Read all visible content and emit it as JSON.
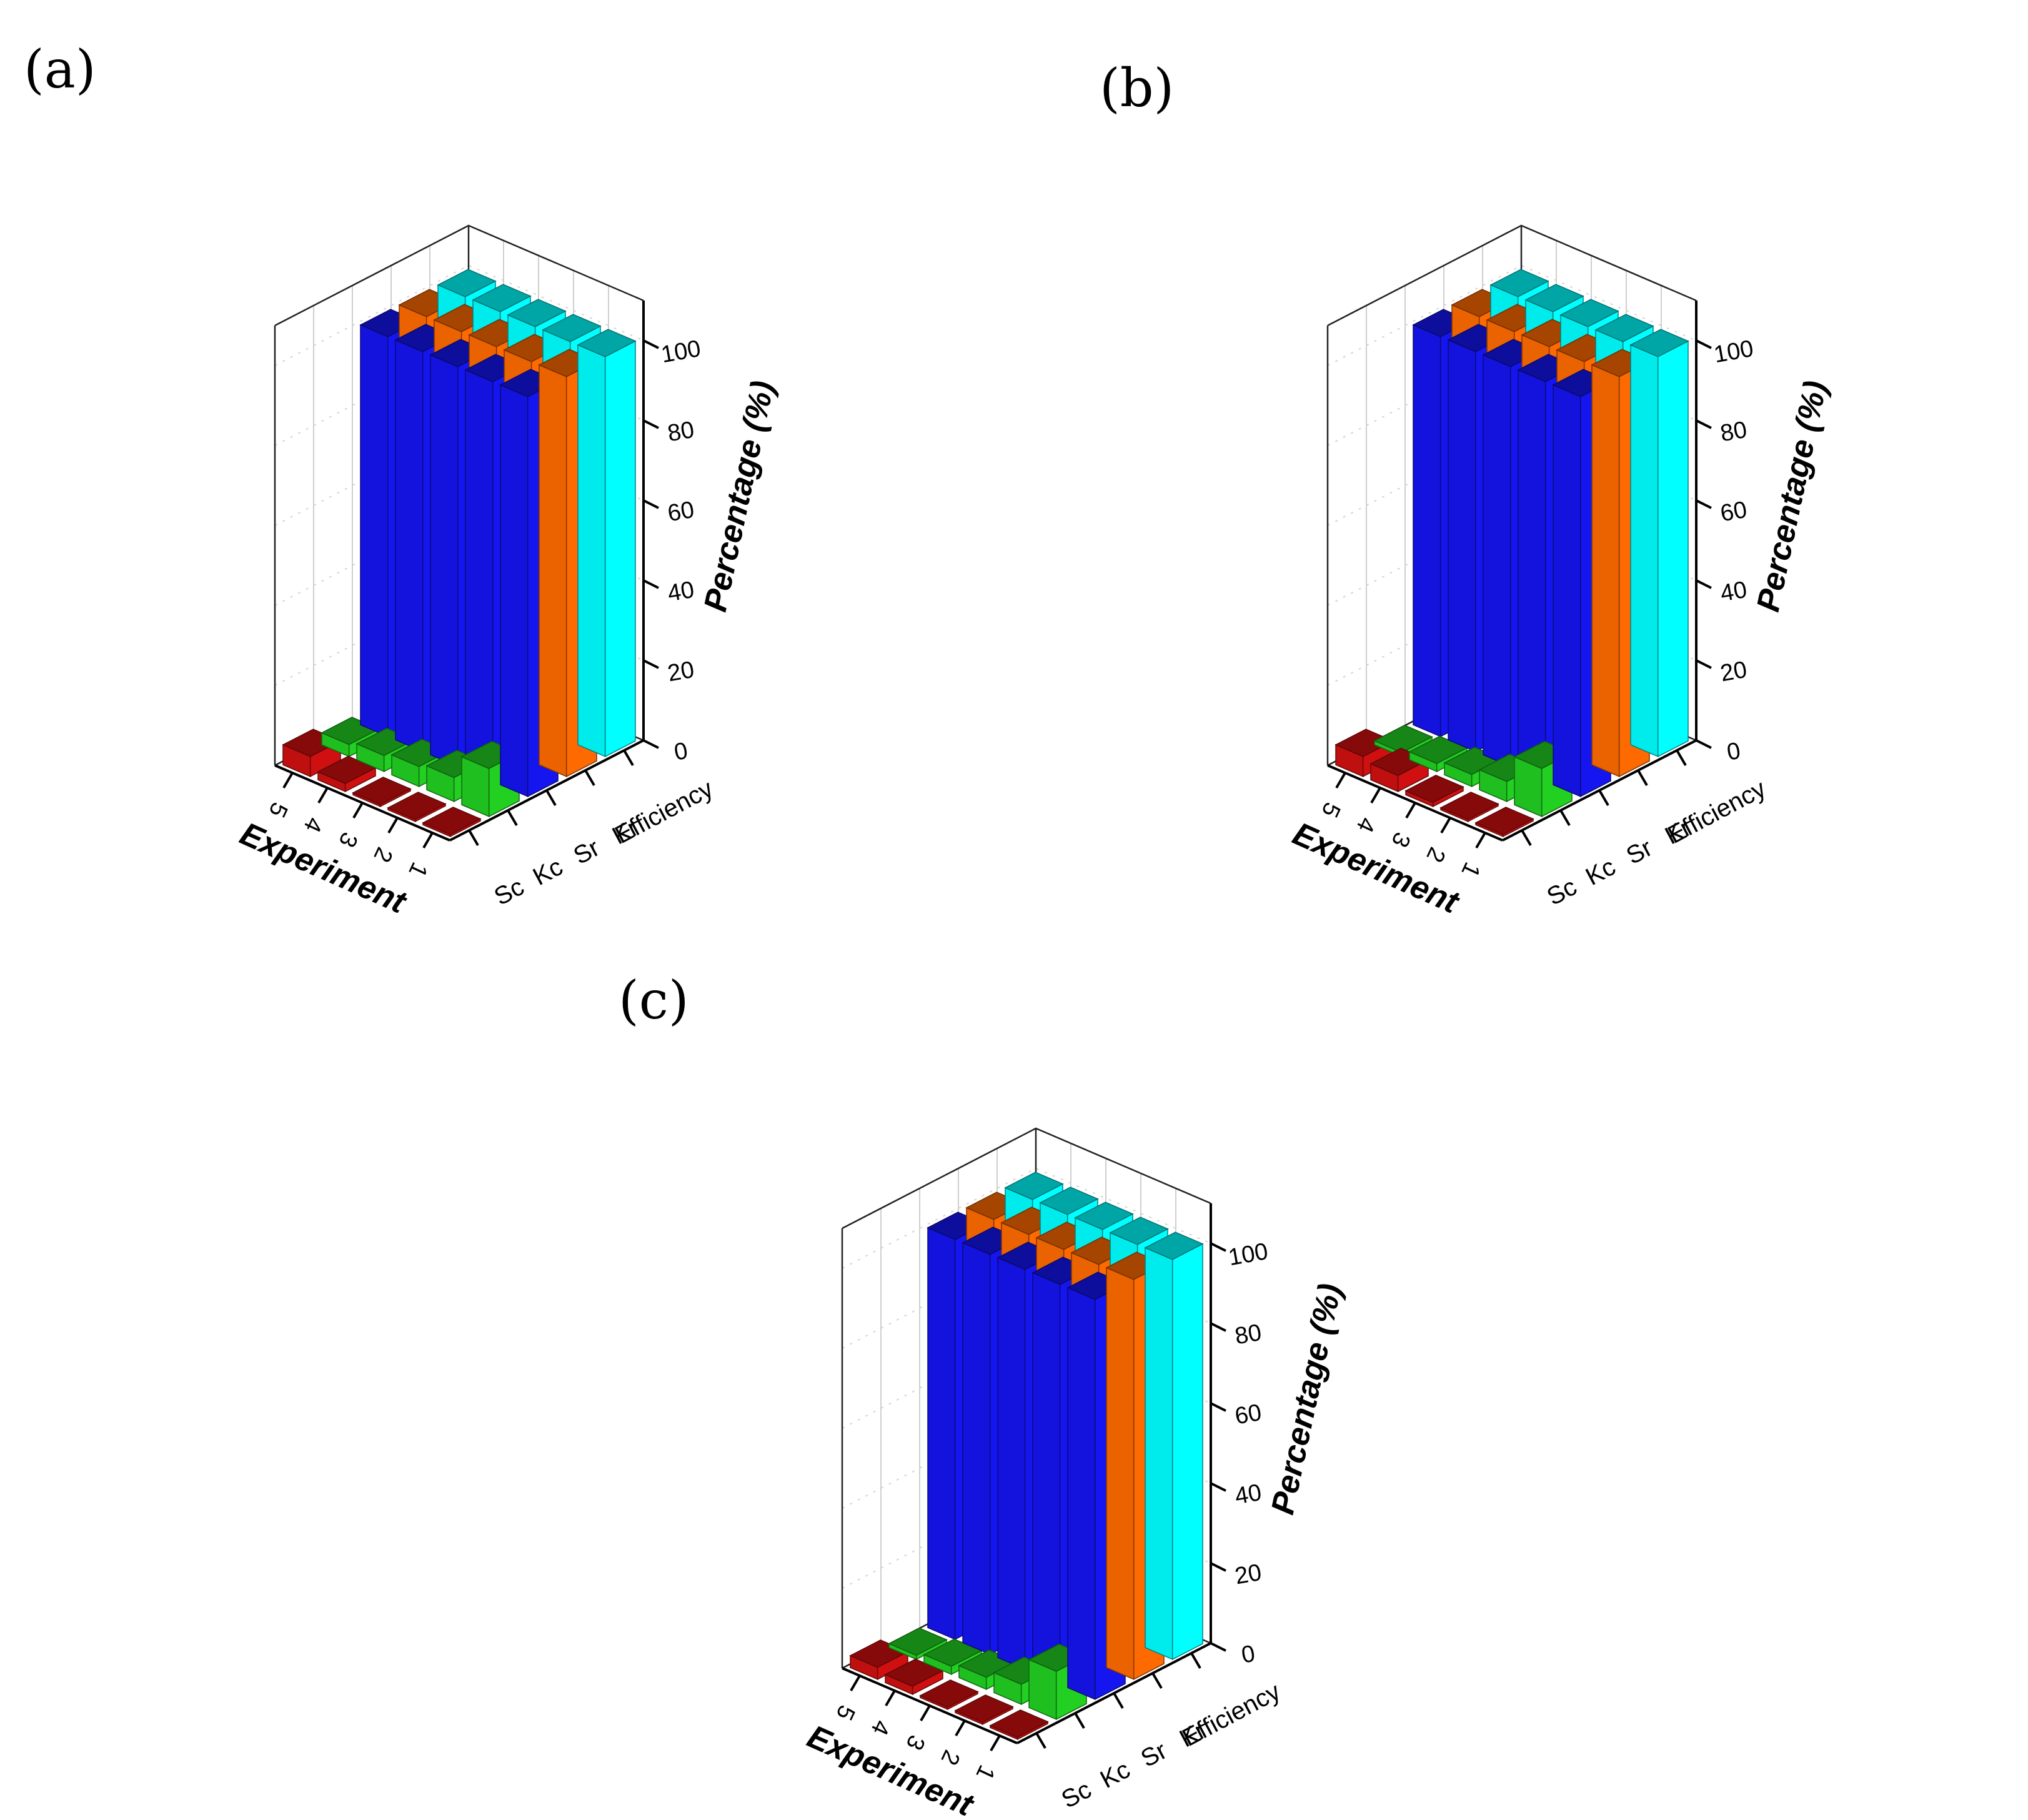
{
  "figure": {
    "panels": [
      "(a)",
      "(b)",
      "(c)"
    ]
  },
  "colors": {
    "Sc": "#d01010",
    "Kc": "#22d022",
    "Sr": "#1515f0",
    "Kr": "#ff6a00",
    "Efficiency": "#00ffff"
  },
  "chart_data": [
    {
      "type": "bar",
      "panel_label": "(a)",
      "xlabel": "Experiment",
      "zlabel": "Percentage (%)",
      "experiments": [
        "1",
        "2",
        "3",
        "4",
        "5"
      ],
      "categories": [
        "Sc",
        "Kc",
        "Sr",
        "Kr",
        "Efficiency"
      ],
      "zlim": [
        0,
        110
      ],
      "zticks": [
        "0",
        "20",
        "40",
        "60",
        "80",
        "100"
      ],
      "grid": true,
      "series": [
        {
          "name": "Sc",
          "values": [
            0.5,
            0.5,
            0.5,
            2,
            5
          ]
        },
        {
          "name": "Kc",
          "values": [
            12,
            6,
            5,
            4,
            3
          ]
        },
        {
          "name": "Sr",
          "values": [
            100,
            100,
            100,
            100,
            100
          ]
        },
        {
          "name": "Kr",
          "values": [
            100,
            100,
            100,
            100,
            100
          ]
        },
        {
          "name": "Efficiency",
          "values": [
            100,
            100,
            100,
            100,
            100
          ]
        }
      ]
    },
    {
      "type": "bar",
      "panel_label": "(b)",
      "xlabel": "Experiment",
      "zlabel": "Percentage (%)",
      "experiments": [
        "1",
        "2",
        "3",
        "4",
        "5"
      ],
      "categories": [
        "Sc",
        "Kc",
        "Sr",
        "Kr",
        "Efficiency"
      ],
      "zlim": [
        0,
        110
      ],
      "zticks": [
        "0",
        "20",
        "40",
        "60",
        "80",
        "100"
      ],
      "grid": true,
      "series": [
        {
          "name": "Sc",
          "values": [
            0.5,
            0.5,
            1,
            4,
            5
          ]
        },
        {
          "name": "Kc",
          "values": [
            12,
            5,
            3,
            2,
            1
          ]
        },
        {
          "name": "Sr",
          "values": [
            100,
            100,
            100,
            100,
            100
          ]
        },
        {
          "name": "Kr",
          "values": [
            100,
            100,
            100,
            100,
            100
          ]
        },
        {
          "name": "Efficiency",
          "values": [
            100,
            100,
            100,
            100,
            100
          ]
        }
      ]
    },
    {
      "type": "bar",
      "panel_label": "(c)",
      "xlabel": "Experiment",
      "zlabel": "Percentage (%)",
      "experiments": [
        "1",
        "2",
        "3",
        "4",
        "5"
      ],
      "categories": [
        "Sc",
        "Kc",
        "Sr",
        "Kr",
        "Efficiency"
      ],
      "zlim": [
        0,
        110
      ],
      "zticks": [
        "0",
        "20",
        "40",
        "60",
        "80",
        "100"
      ],
      "grid": true,
      "series": [
        {
          "name": "Sc",
          "values": [
            0.5,
            0.5,
            0.5,
            2,
            3
          ]
        },
        {
          "name": "Kc",
          "values": [
            12,
            5,
            3,
            2,
            1
          ]
        },
        {
          "name": "Sr",
          "values": [
            100,
            100,
            100,
            100,
            100
          ]
        },
        {
          "name": "Kr",
          "values": [
            100,
            100,
            100,
            100,
            100
          ]
        },
        {
          "name": "Efficiency",
          "values": [
            100,
            100,
            100,
            100,
            100
          ]
        }
      ]
    }
  ]
}
